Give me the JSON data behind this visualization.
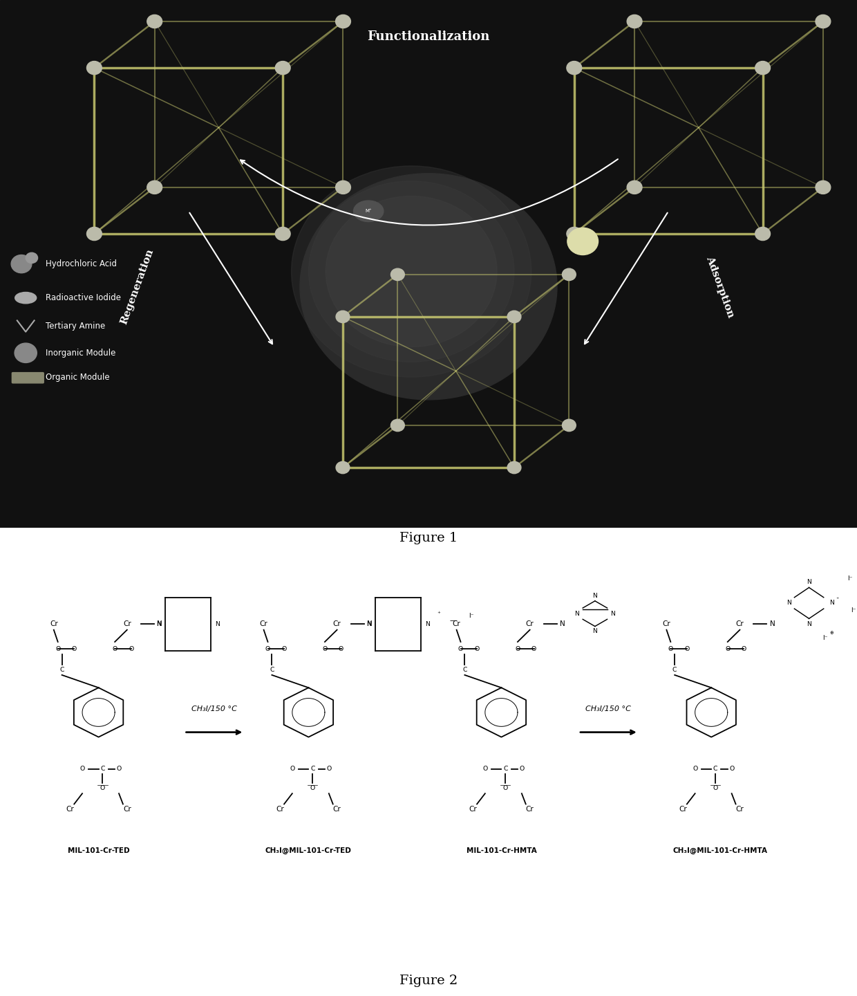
{
  "fig1_caption": "Figure 1",
  "fig2_caption": "Figure 2",
  "fig1_bg": "#1a1a1a",
  "fig2_bg": "#ffffff",
  "overall_bg": "#ffffff",
  "fig1_labels": {
    "functionalization": "Functionalization",
    "regeneration": "Regeneration",
    "adsorption": "Adsorption"
  },
  "fig1_legend": [
    "Hydrochloric Acid",
    "Radioactive Iodide",
    "Tertiary Amine",
    "Inorganic Module",
    "Organic Module"
  ],
  "fig2_labels": {
    "label1": "MIL-101-Cr-TED",
    "label2": "CH₃I@MIL-101-Cr-TED",
    "label3": "MIL-101-Cr-HMTA",
    "label4": "CH₃I@MIL-101-Cr-HMTA",
    "reaction1": "CH₃I/150 °C",
    "reaction2": "CH₃I/150 °C"
  },
  "caption_fontsize": 14,
  "label_fontsize": 11
}
